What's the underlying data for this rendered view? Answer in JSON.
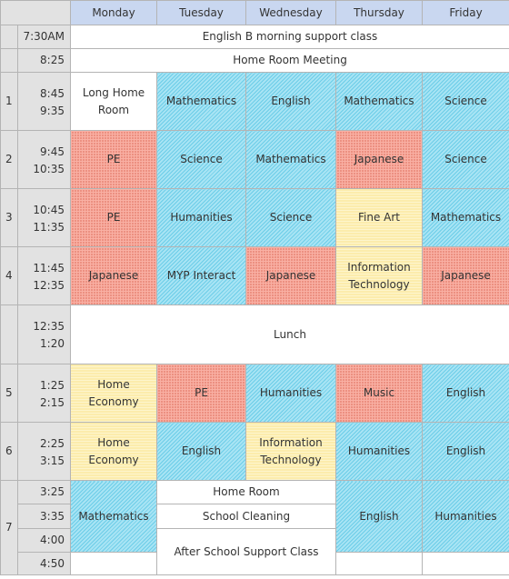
{
  "header": {
    "days": [
      "Monday",
      "Tuesday",
      "Wednesday",
      "Thursday",
      "Friday"
    ]
  },
  "rows": {
    "morning": {
      "time": "7:30AM",
      "label": "English B morning support class"
    },
    "homeroom": {
      "time": "8:25",
      "label": "Home Room Meeting"
    },
    "p1": {
      "period": "1",
      "start": "8:45",
      "end": "9:35",
      "cells": [
        "Long Home Room",
        "Mathematics",
        "English",
        "Mathematics",
        "Science"
      ]
    },
    "p2": {
      "period": "2",
      "start": "9:45",
      "end": "10:35",
      "cells": [
        "PE",
        "Science",
        "Mathematics",
        "Japanese",
        "Science"
      ]
    },
    "p3": {
      "period": "3",
      "start": "10:45",
      "end": "11:35",
      "cells": [
        "PE",
        "Humanities",
        "Science",
        "Fine Art",
        "Mathematics"
      ]
    },
    "p4": {
      "period": "4",
      "start": "11:45",
      "end": "12:35",
      "cells": [
        "Japanese",
        "MYP Interact",
        "Japanese",
        "Information Technology",
        "Japanese"
      ]
    },
    "lunch": {
      "start": "12:35",
      "end": "1:20",
      "label": "Lunch"
    },
    "p5": {
      "period": "5",
      "start": "1:25",
      "end": "2:15",
      "cells": [
        "Home Economy",
        "PE",
        "Humanities",
        "Music",
        "English"
      ]
    },
    "p6": {
      "period": "6",
      "start": "2:25",
      "end": "3:15",
      "cells": [
        "Home Economy",
        "English",
        "Information Technology",
        "Humanities",
        "English"
      ]
    },
    "p7": {
      "period": "7",
      "times": [
        "3:25",
        "3:35",
        "4:00",
        "4:50"
      ],
      "monday": "Mathematics",
      "homeroom": "Home Room",
      "cleaning": "School Cleaning",
      "support": "After School Support Class",
      "thursday": "English",
      "friday": "Humanities"
    }
  },
  "colors": {
    "header": "#c9d7f0",
    "side": "#e2e2e2",
    "core_subject": "#a8e4f4",
    "pe_language": "#f9b0a4",
    "arts_tech": "#fdf5cc",
    "border": "#b4b4b4"
  }
}
